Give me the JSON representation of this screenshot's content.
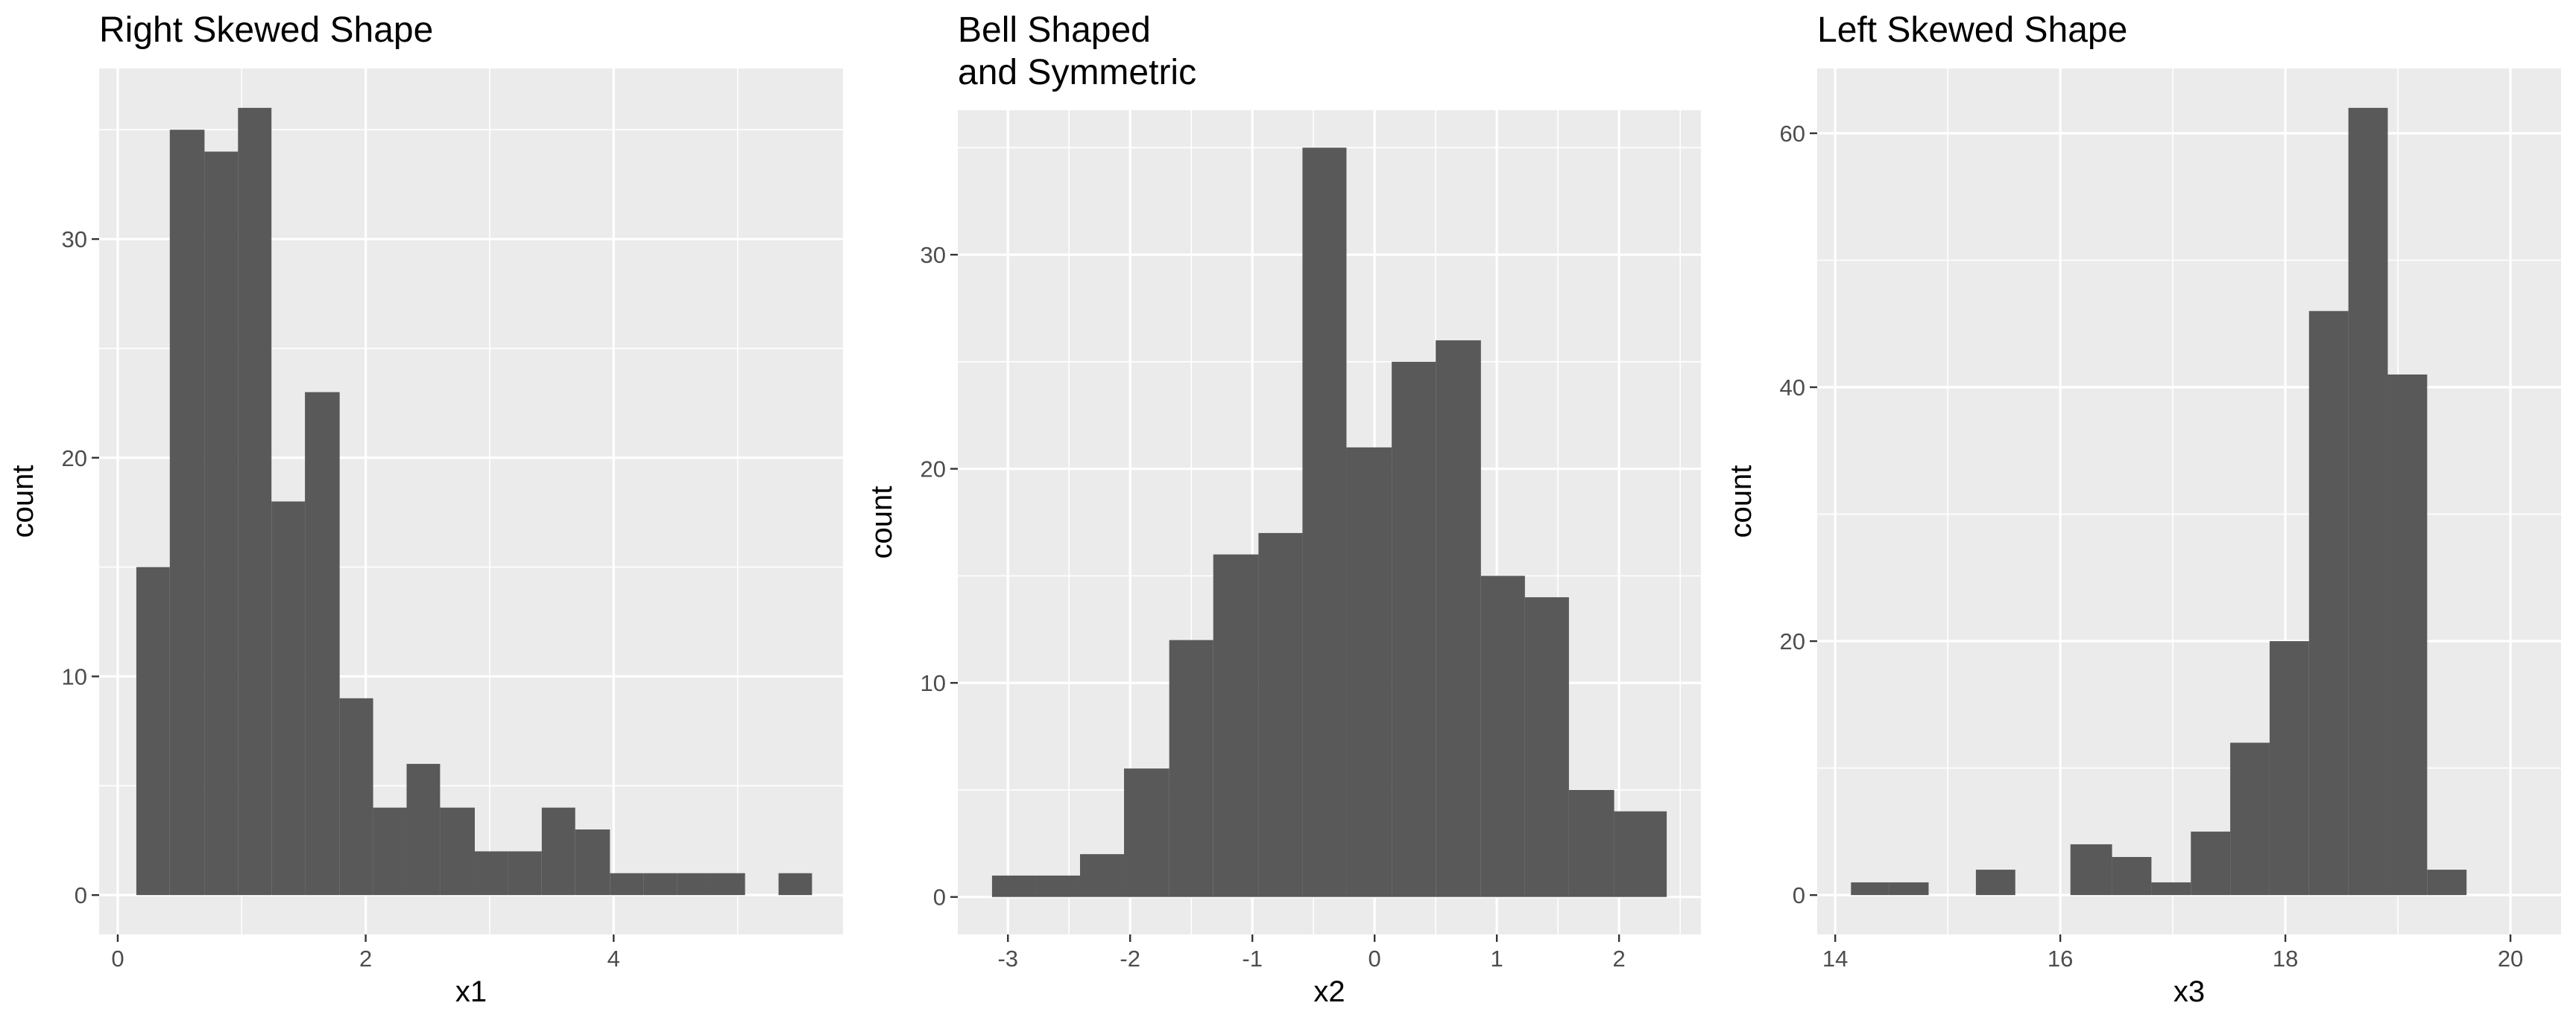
{
  "colors": {
    "panel_background": "#ebebeb",
    "grid_major": "#ffffff",
    "bar_fill": "#595959",
    "tick_mark": "#333333",
    "tick_text": "#4d4d4d"
  },
  "chart_data": [
    {
      "type": "bar",
      "subtype": "histogram",
      "title": [
        "Right Skewed Shape"
      ],
      "xlabel": "x1",
      "ylabel": "count",
      "xlim": [
        -0.15,
        5.85
      ],
      "ylim": [
        -1.8,
        37.8
      ],
      "x_ticks": [
        0,
        2,
        4
      ],
      "y_ticks": [
        0,
        10,
        20,
        30
      ],
      "grid": true,
      "bins": [
        {
          "x0": 0.15,
          "x1": 0.42,
          "count": 15
        },
        {
          "x0": 0.42,
          "x1": 0.7,
          "count": 35
        },
        {
          "x0": 0.7,
          "x1": 0.97,
          "count": 34
        },
        {
          "x0": 0.97,
          "x1": 1.24,
          "count": 36
        },
        {
          "x0": 1.24,
          "x1": 1.51,
          "count": 18
        },
        {
          "x0": 1.51,
          "x1": 1.79,
          "count": 23
        },
        {
          "x0": 1.79,
          "x1": 2.06,
          "count": 9
        },
        {
          "x0": 2.06,
          "x1": 2.33,
          "count": 4
        },
        {
          "x0": 2.33,
          "x1": 2.6,
          "count": 6
        },
        {
          "x0": 2.6,
          "x1": 2.88,
          "count": 4
        },
        {
          "x0": 2.88,
          "x1": 3.15,
          "count": 2
        },
        {
          "x0": 3.15,
          "x1": 3.42,
          "count": 2
        },
        {
          "x0": 3.42,
          "x1": 3.69,
          "count": 4
        },
        {
          "x0": 3.69,
          "x1": 3.97,
          "count": 3
        },
        {
          "x0": 3.97,
          "x1": 4.24,
          "count": 1
        },
        {
          "x0": 4.24,
          "x1": 4.51,
          "count": 1
        },
        {
          "x0": 4.51,
          "x1": 4.78,
          "count": 1
        },
        {
          "x0": 4.78,
          "x1": 5.06,
          "count": 1
        },
        {
          "x0": 5.06,
          "x1": 5.33,
          "count": 0
        },
        {
          "x0": 5.33,
          "x1": 5.6,
          "count": 1
        }
      ]
    },
    {
      "type": "bar",
      "subtype": "histogram",
      "title": [
        "Bell Shaped",
        "and Symmetric"
      ],
      "xlabel": "x2",
      "ylabel": "count",
      "xlim": [
        -3.41,
        2.67
      ],
      "ylim": [
        -1.75,
        36.75
      ],
      "x_ticks": [
        -3,
        -2,
        -1,
        0,
        1,
        2
      ],
      "y_ticks": [
        0,
        10,
        20,
        30
      ],
      "grid": true,
      "bins": [
        {
          "x0": -3.13,
          "x1": -2.77,
          "count": 1
        },
        {
          "x0": -2.77,
          "x1": -2.41,
          "count": 1
        },
        {
          "x0": -2.41,
          "x1": -2.05,
          "count": 2
        },
        {
          "x0": -2.05,
          "x1": -1.68,
          "count": 6
        },
        {
          "x0": -1.68,
          "x1": -1.32,
          "count": 12
        },
        {
          "x0": -1.32,
          "x1": -0.95,
          "count": 16
        },
        {
          "x0": -0.95,
          "x1": -0.59,
          "count": 17
        },
        {
          "x0": -0.59,
          "x1": -0.23,
          "count": 35
        },
        {
          "x0": -0.23,
          "x1": 0.14,
          "count": 21
        },
        {
          "x0": 0.14,
          "x1": 0.5,
          "count": 25
        },
        {
          "x0": 0.5,
          "x1": 0.87,
          "count": 26
        },
        {
          "x0": 0.87,
          "x1": 1.23,
          "count": 15
        },
        {
          "x0": 1.23,
          "x1": 1.59,
          "count": 14
        },
        {
          "x0": 1.59,
          "x1": 1.96,
          "count": 5
        },
        {
          "x0": 1.96,
          "x1": 2.39,
          "count": 4
        }
      ]
    },
    {
      "type": "bar",
      "subtype": "histogram",
      "title": [
        "Left Skewed Shape"
      ],
      "xlabel": "x3",
      "ylabel": "count",
      "xlim": [
        13.84,
        20.45
      ],
      "ylim": [
        -3.1,
        65.1
      ],
      "x_ticks": [
        14,
        16,
        18,
        20
      ],
      "y_ticks": [
        0,
        20,
        40,
        60
      ],
      "grid": true,
      "bins": [
        {
          "x0": 14.14,
          "x1": 14.48,
          "count": 1
        },
        {
          "x0": 14.48,
          "x1": 14.83,
          "count": 1
        },
        {
          "x0": 14.83,
          "x1": 15.25,
          "count": 0
        },
        {
          "x0": 15.25,
          "x1": 15.6,
          "count": 2
        },
        {
          "x0": 15.6,
          "x1": 16.09,
          "count": 0
        },
        {
          "x0": 16.09,
          "x1": 16.46,
          "count": 4
        },
        {
          "x0": 16.46,
          "x1": 16.81,
          "count": 3
        },
        {
          "x0": 16.81,
          "x1": 17.16,
          "count": 1
        },
        {
          "x0": 17.16,
          "x1": 17.51,
          "count": 5
        },
        {
          "x0": 17.51,
          "x1": 17.86,
          "count": 12
        },
        {
          "x0": 17.86,
          "x1": 18.21,
          "count": 20
        },
        {
          "x0": 18.21,
          "x1": 18.56,
          "count": 46
        },
        {
          "x0": 18.56,
          "x1": 18.91,
          "count": 62
        },
        {
          "x0": 18.91,
          "x1": 19.26,
          "count": 41
        },
        {
          "x0": 19.26,
          "x1": 19.61,
          "count": 2
        }
      ]
    }
  ]
}
